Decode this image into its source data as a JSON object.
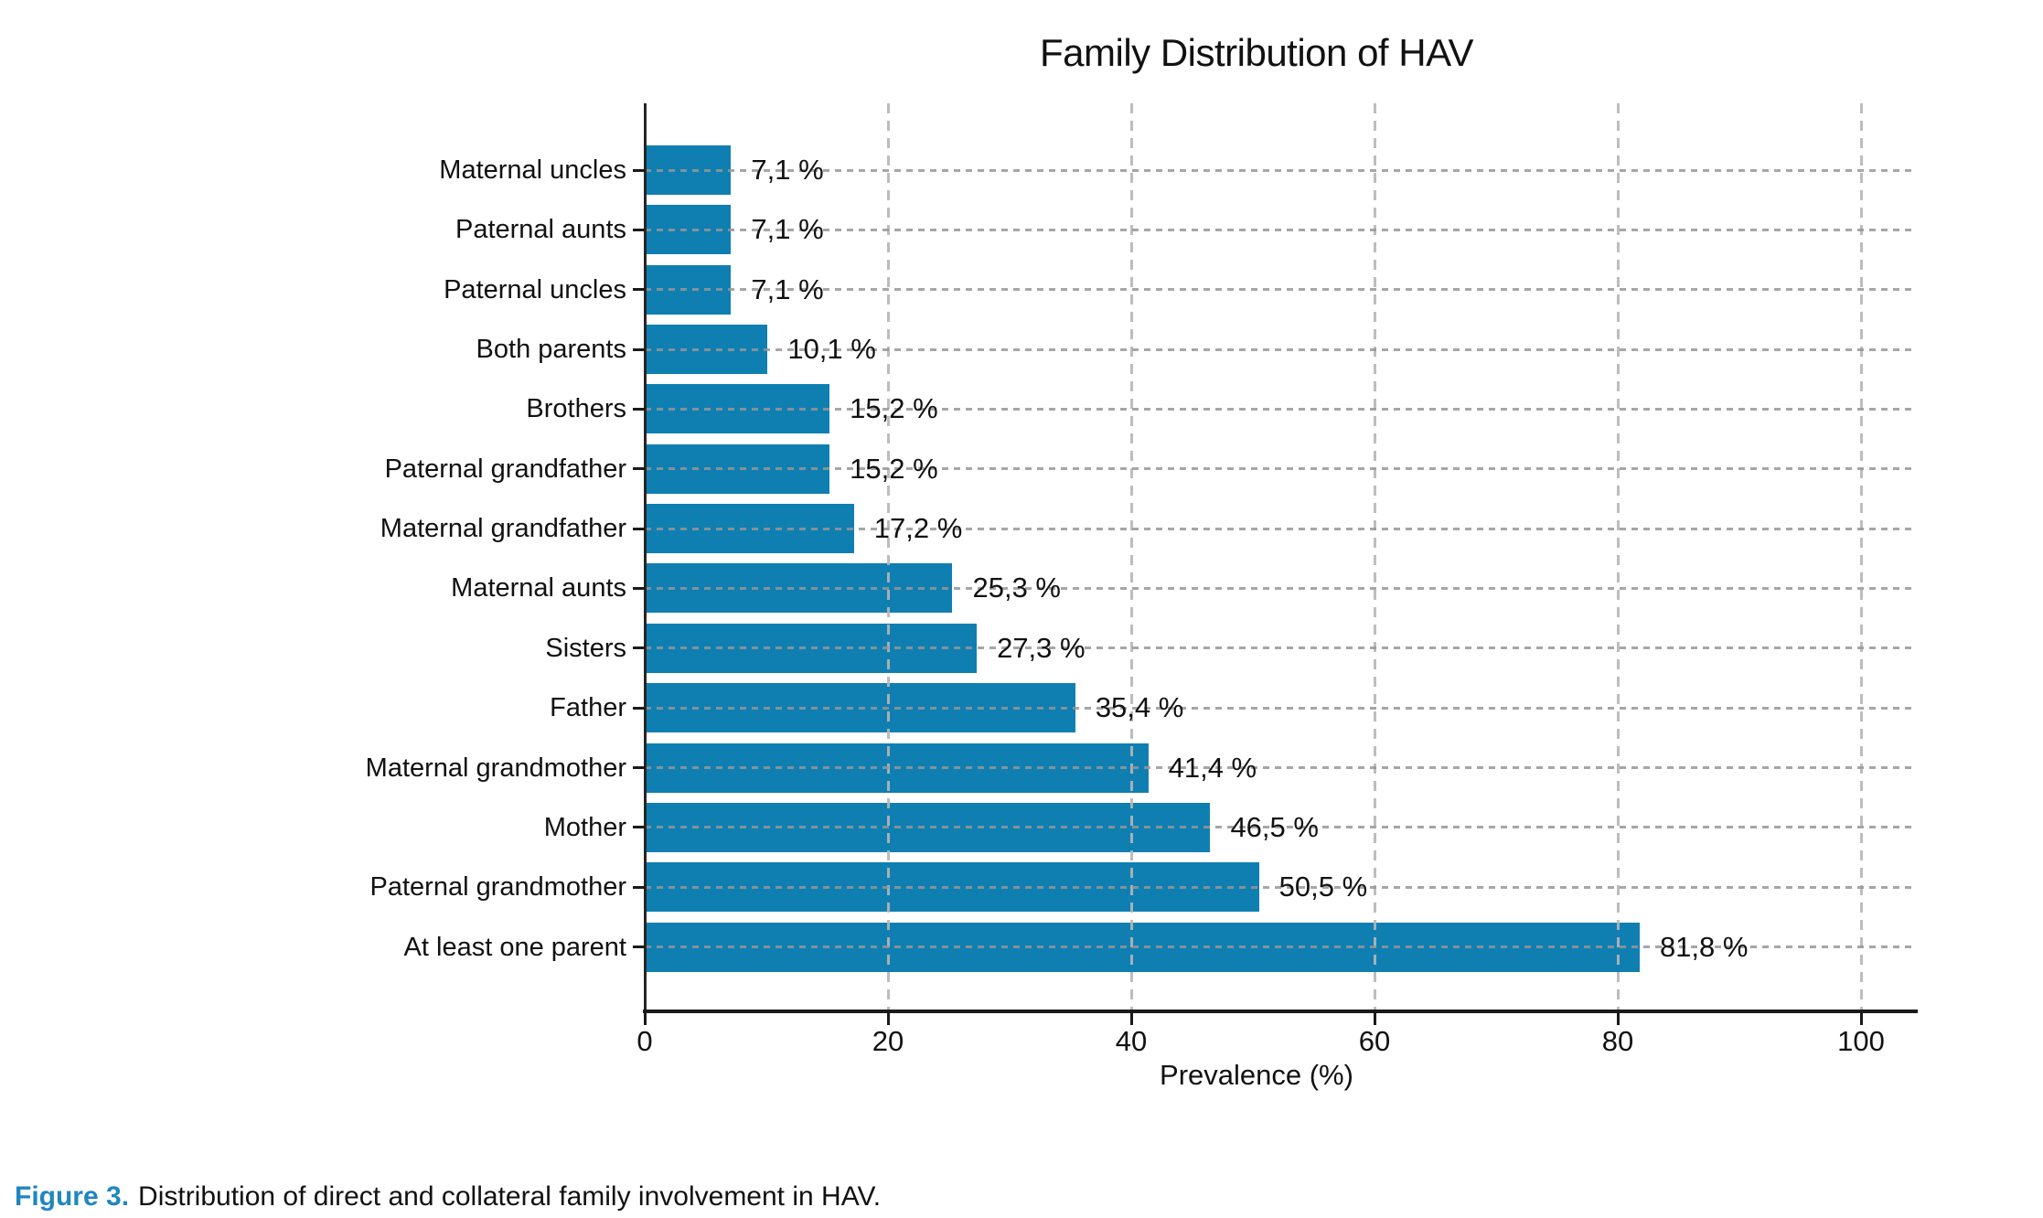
{
  "figure": {
    "caption_prefix": "Figure 3.",
    "caption_text": "Distribution of direct and collateral family involvement in HAV."
  },
  "chart_data": {
    "type": "bar",
    "orientation": "horizontal",
    "title": "Family Distribution of HAV",
    "xlabel": "Prevalence (%)",
    "ylabel": "",
    "xlim": [
      0,
      100
    ],
    "xticks": [
      "0",
      "20",
      "40",
      "60",
      "80",
      "100"
    ],
    "xtick_values": [
      0,
      20,
      40,
      60,
      80,
      100
    ],
    "grid": "dashed, both axes, drawn over bars",
    "legend_position": "none",
    "categories": [
      "Maternal uncles",
      "Paternal aunts",
      "Paternal uncles",
      "Both parents",
      "Brothers",
      "Paternal grandfather",
      "Maternal grandfather",
      "Maternal aunts",
      "Sisters",
      "Father",
      "Maternal grandmother",
      "Mother",
      "Paternal grandmother",
      "At least one parent"
    ],
    "values": [
      7.1,
      7.1,
      7.1,
      10.1,
      15.2,
      15.2,
      17.2,
      25.3,
      27.3,
      35.4,
      41.4,
      46.5,
      50.5,
      81.8
    ],
    "value_labels": [
      "7,1 %",
      "7,1 %",
      "7,1 %",
      "10,1 %",
      "15,2 %",
      "15,2 %",
      "17,2 %",
      "25,3 %",
      "27,3 %",
      "35,4 %",
      "41,4 %",
      "46,5 %",
      "50,5 %",
      "81,8 %"
    ],
    "bar_color": "#0f7fb2"
  },
  "colors": {
    "bar": "#0f7fb2",
    "caption_accent": "#1f86c0",
    "axis": "#1a1a1a",
    "grid": "#b3b3b3",
    "text": "#111111"
  }
}
